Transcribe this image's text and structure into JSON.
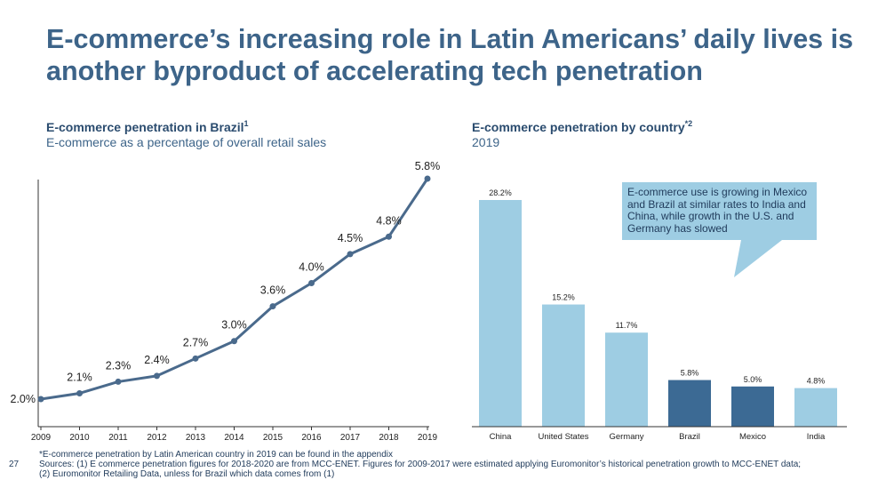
{
  "title": "E-commerce’s increasing role in Latin Americans’ daily lives is another byproduct of accelerating tech penetration",
  "chart_data": [
    {
      "type": "line",
      "title": "E-commerce penetration in Brazil",
      "title_sup": "1",
      "subtitle": "E-commerce as a percentage of overall retail sales",
      "x": [
        "2009",
        "2010",
        "2011",
        "2012",
        "2013",
        "2014",
        "2015",
        "2016",
        "2017",
        "2018",
        "2019"
      ],
      "values": [
        2.0,
        2.1,
        2.3,
        2.4,
        2.7,
        3.0,
        3.6,
        4.0,
        4.5,
        4.8,
        5.8
      ],
      "labels": [
        "2.0%",
        "2.1%",
        "2.3%",
        "2.4%",
        "2.7%",
        "3.0%",
        "3.6%",
        "4.0%",
        "4.5%",
        "4.8%",
        "5.8%"
      ],
      "color": "#4a6a8c"
    },
    {
      "type": "bar",
      "title": "E-commerce penetration by country",
      "title_sup": "*2",
      "subtitle": "2019",
      "categories": [
        "China",
        "United States",
        "Germany",
        "Brazil",
        "Mexico",
        "India"
      ],
      "values": [
        28.2,
        15.2,
        11.7,
        5.8,
        5.0,
        4.8
      ],
      "labels": [
        "28.2%",
        "15.2%",
        "11.7%",
        "5.8%",
        "5.0%",
        "4.8%"
      ],
      "colors": [
        "#9ecde3",
        "#9ecde3",
        "#9ecde3",
        "#3c6a94",
        "#3c6a94",
        "#9ecde3"
      ],
      "callout": "E-commerce use is growing in Mexico and Brazil at similar rates to India and China, while growth in the U.S. and Germany has slowed"
    }
  ],
  "footer": {
    "note": "*E-commerce penetration by Latin American country in 2019 can be found in the appendix",
    "page": "27",
    "sources": "Sources: (1) E commerce penetration figures for 2018-2020 are from MCC-ENET. Figures for 2009-2017 were estimated applying Euromonitor’s historical penetration growth to MCC-ENET data; (2) Euromonitor Retailing Data, unless for Brazil which data comes from (1)"
  },
  "colors": {
    "title": "#3d6489",
    "callout_bg": "#9ecde3"
  }
}
